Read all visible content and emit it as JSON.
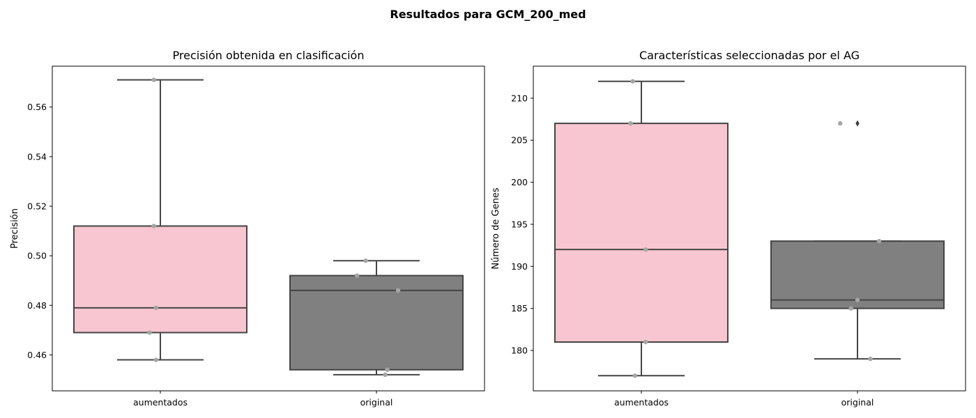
{
  "figure": {
    "title": "Resultados para GCM_200_med"
  },
  "colors": {
    "aumentados": "#f7c6d0",
    "original": "#808080",
    "line": "#444444",
    "points": "#a6a6a6"
  },
  "chart_data": [
    {
      "type": "box",
      "title": "Precisión obtenida en clasificación",
      "xlabel": "",
      "ylabel": "Precisión",
      "ylim": [
        0.4455,
        0.5765
      ],
      "yticks": [
        0.46,
        0.48,
        0.5,
        0.52,
        0.54,
        0.56
      ],
      "ytick_labels": [
        "0.46",
        "0.48",
        "0.50",
        "0.52",
        "0.54",
        "0.56"
      ],
      "categories": [
        "aumentados",
        "original"
      ],
      "boxes": [
        {
          "category": "aumentados",
          "whislo": 0.458,
          "q1": 0.469,
          "med": 0.479,
          "q3": 0.512,
          "whishi": 0.571,
          "fliers": []
        },
        {
          "category": "original",
          "whislo": 0.452,
          "q1": 0.454,
          "med": 0.486,
          "q3": 0.492,
          "whishi": 0.498,
          "fliers": []
        }
      ],
      "points": [
        {
          "category": "aumentados",
          "values": [
            0.571,
            0.512,
            0.479,
            0.469,
            0.458
          ]
        },
        {
          "category": "original",
          "values": [
            0.498,
            0.492,
            0.486,
            0.454,
            0.452
          ]
        }
      ]
    },
    {
      "type": "box",
      "title": "Características seleccionadas por el AG",
      "xlabel": "",
      "ylabel": "Número de Genes",
      "ylim": [
        175.2,
        213.8
      ],
      "yticks": [
        180,
        185,
        190,
        195,
        200,
        205,
        210
      ],
      "ytick_labels": [
        "180",
        "185",
        "190",
        "195",
        "200",
        "205",
        "210"
      ],
      "categories": [
        "aumentados",
        "original"
      ],
      "boxes": [
        {
          "category": "aumentados",
          "whislo": 177,
          "q1": 181,
          "med": 192,
          "q3": 207,
          "whishi": 212,
          "fliers": []
        },
        {
          "category": "original",
          "whislo": 179,
          "q1": 185,
          "med": 186,
          "q3": 193,
          "whishi": 193,
          "fliers": [
            207
          ]
        }
      ],
      "points": [
        {
          "category": "aumentados",
          "values": [
            212,
            207,
            192,
            181,
            177
          ]
        },
        {
          "category": "original",
          "values": [
            207,
            193,
            186,
            185,
            179
          ]
        }
      ]
    }
  ]
}
